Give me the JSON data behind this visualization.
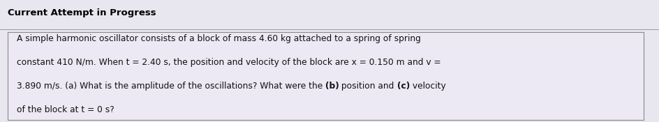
{
  "title": "Current Attempt in Progress",
  "line1": "A simple harmonic oscillator consists of a block of mass 4.60 kg attached to a spring of spring",
  "line2": "constant 410 N/m. When t = 2.40 s, the position and velocity of the block are x = 0.150 m and v =",
  "line3_pre_bold_b": "3.890 m/s. (a) What is the amplitude of the oscillations? What were the ",
  "line3_bold_b": "(b)",
  "line3_mid": " position and ",
  "line3_bold_c": "(c)",
  "line3_post": " velocity",
  "line4": "of the block at t = 0 s?",
  "bg_color": "#e8e6ee",
  "box_bg": "#ece9f4",
  "border_color": "#888888",
  "title_color": "#000000",
  "body_color": "#111111",
  "title_fontsize": 9.5,
  "body_fontsize": 8.8
}
